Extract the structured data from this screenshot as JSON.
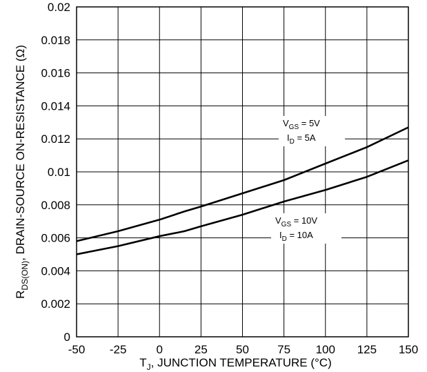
{
  "chart_data": {
    "type": "line",
    "title": "",
    "xlabel": "T_J, JUNCTION TEMPERATURE (°C)",
    "ylabel": "R_DS(ON), DRAIN-SOURCE ON-RESISTANCE (Ω)",
    "xlabel_parts": {
      "main": "T",
      "sub": "J",
      "rest": ", JUNCTION TEMPERATURE (°C)"
    },
    "ylabel_parts": {
      "main": "R",
      "sub": "DS(ON)",
      "rest": ", DRAIN-SOURCE ON-RESISTANCE (Ω)"
    },
    "xlim": [
      -50,
      150
    ],
    "ylim": [
      0,
      0.02
    ],
    "xticks": [
      "-50",
      "-25",
      "0",
      "25",
      "50",
      "75",
      "100",
      "125",
      "150"
    ],
    "yticks": [
      "0",
      "0.002",
      "0.004",
      "0.006",
      "0.008",
      "0.01",
      "0.012",
      "0.014",
      "0.016",
      "0.018",
      "0.02"
    ],
    "grid": true,
    "series": [
      {
        "x": [
          -50,
          -25,
          0,
          15,
          25,
          50,
          75,
          100,
          125,
          150
        ],
        "y": [
          0.0058,
          0.0064,
          0.0071,
          0.0076,
          0.0079,
          0.0087,
          0.0095,
          0.0105,
          0.0115,
          0.0127
        ]
      },
      {
        "x": [
          -50,
          -25,
          0,
          15,
          25,
          50,
          75,
          100,
          125,
          150
        ],
        "y": [
          0.005,
          0.0055,
          0.0061,
          0.0064,
          0.0067,
          0.0074,
          0.0082,
          0.0089,
          0.0097,
          0.0107
        ]
      }
    ],
    "annotations": [
      {
        "line1_main": "V",
        "line1_sub": "GS",
        "line1_rest": " = 5V",
        "line2_main": "I",
        "line2_sub": "D",
        "line2_rest": " = 5A"
      },
      {
        "line1_main": "V",
        "line1_sub": "GS",
        "line1_rest": " = 10V",
        "line2_main": "I",
        "line2_sub": "D",
        "line2_rest": " = 10A"
      }
    ]
  }
}
